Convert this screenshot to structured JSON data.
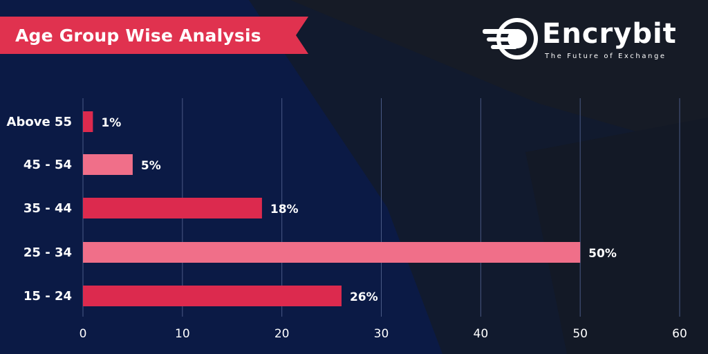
{
  "header": {
    "title": "Age Group Wise Analysis"
  },
  "logo": {
    "name": "Encrybit",
    "tagline": "The Future of Exchange"
  },
  "colors": {
    "background": "#0b1a45",
    "bar_dark": "#dc2a4e",
    "bar_light": "#f06f89",
    "banner": "#e0324f",
    "grid": "#4a5a86"
  },
  "chart_data": {
    "type": "bar",
    "orientation": "horizontal",
    "title": "Age Group Wise Analysis",
    "categories": [
      "Above 55",
      "45 - 54",
      "35 - 44",
      "25 - 34",
      "15 - 24"
    ],
    "values": [
      1,
      5,
      18,
      50,
      26
    ],
    "value_labels": [
      "1%",
      "5%",
      "18%",
      "50%",
      "26%"
    ],
    "xlim": [
      0,
      60
    ],
    "xticks": [
      0,
      10,
      20,
      30,
      40,
      50,
      60
    ],
    "xtick_labels": [
      "0",
      "10",
      "20",
      "30",
      "40",
      "50",
      "60"
    ],
    "grid": true,
    "legend": "none"
  }
}
